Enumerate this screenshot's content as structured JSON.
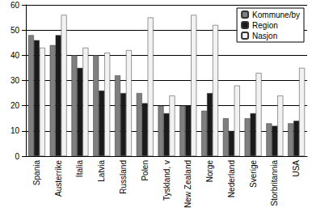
{
  "chart_data": {
    "type": "bar",
    "categories": [
      "Spania",
      "Austerrike",
      "Italia",
      "Latvia",
      "Russland",
      "Polen",
      "Tyskland, v",
      "New Zealand",
      "Norge",
      "Nederland",
      "Sverige",
      "Storbritannia",
      "USA"
    ],
    "series": [
      {
        "name": "Kommune/by",
        "color": "#7f7f7f",
        "values": [
          48,
          44,
          40,
          40,
          32,
          25,
          20,
          20,
          18,
          15,
          15,
          13,
          13
        ]
      },
      {
        "name": "Region",
        "color": "#1a1a1a",
        "values": [
          46,
          48,
          35,
          26,
          25,
          21,
          17,
          20,
          25,
          10,
          17,
          12,
          14
        ]
      },
      {
        "name": "Nasjon",
        "color": "#f2f2f2",
        "values": [
          43,
          56,
          43,
          41,
          42,
          55,
          24,
          56,
          52,
          28,
          33,
          24,
          35
        ]
      }
    ],
    "ylim": [
      0,
      60
    ],
    "yticks": [
      0,
      10,
      20,
      30,
      40,
      50,
      60
    ],
    "grid": true,
    "legend": "top-right"
  }
}
